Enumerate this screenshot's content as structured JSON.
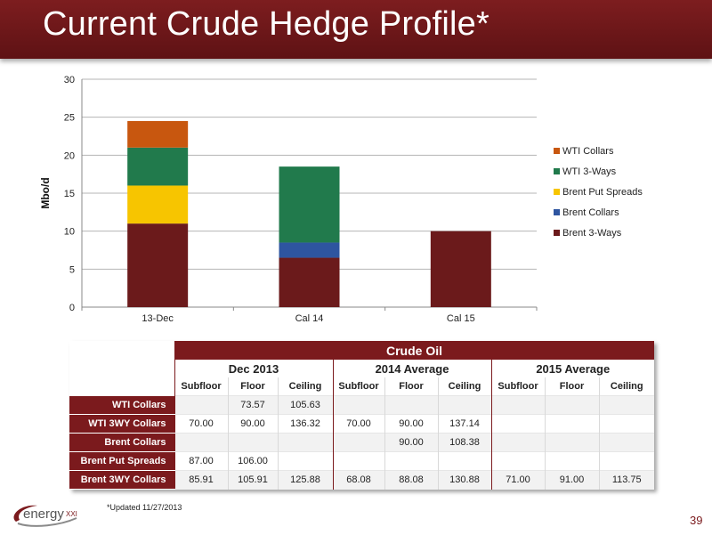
{
  "title": "Current Crude Hedge Profile*",
  "chart_data": {
    "type": "bar",
    "stacked": true,
    "categories": [
      "13-Dec",
      "Cal 14",
      "Cal 15"
    ],
    "series": [
      {
        "name": "Brent 3-Ways",
        "color": "#6b1a1b",
        "values": [
          11,
          6.5,
          10
        ]
      },
      {
        "name": "Brent Collars",
        "color": "#2e55a0",
        "values": [
          0,
          2,
          0
        ]
      },
      {
        "name": "Brent Put Spreads",
        "color": "#f7c500",
        "values": [
          5,
          0,
          0
        ]
      },
      {
        "name": "WTI 3-Ways",
        "color": "#217a4c",
        "values": [
          5,
          10,
          0
        ]
      },
      {
        "name": "WTI Collars",
        "color": "#c8570f",
        "values": [
          3.5,
          0,
          0
        ]
      }
    ],
    "legend_order": [
      "WTI Collars",
      "WTI 3-Ways",
      "Brent Put Spreads",
      "Brent Collars",
      "Brent 3-Ways"
    ],
    "legend_position": "right",
    "ylabel": "Mbo/d",
    "ylim": [
      0,
      30
    ],
    "yticks": [
      "0",
      "5",
      "10",
      "15",
      "20",
      "25",
      "30"
    ],
    "grid": true
  },
  "table": {
    "title": "Crude Oil",
    "groups": [
      "Dec 2013",
      "2014 Average",
      "2015 Average"
    ],
    "subheaders": [
      "Subfloor",
      "Floor",
      "Ceiling",
      "Subfloor",
      "Floor",
      "Ceiling",
      "Subfloor",
      "Floor",
      "Ceiling"
    ],
    "rows": [
      {
        "label": "WTI Collars",
        "cells": [
          "",
          "73.57",
          "105.63",
          "",
          "",
          "",
          "",
          "",
          ""
        ]
      },
      {
        "label": "WTI 3WY Collars",
        "cells": [
          "70.00",
          "90.00",
          "136.32",
          "70.00",
          "90.00",
          "137.14",
          "",
          "",
          ""
        ]
      },
      {
        "label": "Brent Collars",
        "cells": [
          "",
          "",
          "",
          "",
          "90.00",
          "108.38",
          "",
          "",
          ""
        ]
      },
      {
        "label": "Brent Put Spreads",
        "cells": [
          "87.00",
          "106.00",
          "",
          "",
          "",
          "",
          "",
          "",
          ""
        ]
      },
      {
        "label": "Brent 3WY Collars",
        "cells": [
          "85.91",
          "105.91",
          "125.88",
          "68.08",
          "88.08",
          "130.88",
          "71.00",
          "91.00",
          "113.75"
        ]
      }
    ]
  },
  "footnote": "*Updated 11/27/2013",
  "page_number": "39",
  "logo_text": "energyXXI"
}
